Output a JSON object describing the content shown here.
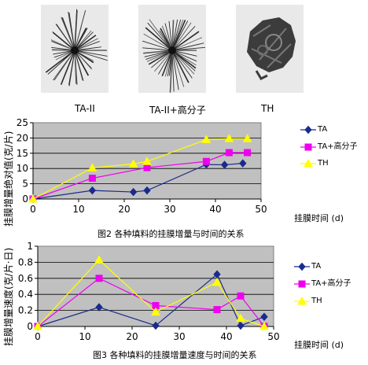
{
  "photos": [
    {
      "label": "TA-II"
    },
    {
      "label": "TA-II+高分子"
    },
    {
      "label": "TH"
    }
  ],
  "chart_data": [
    {
      "type": "line",
      "caption": "图2  各种填料的挂膜增量与时间的关系",
      "xlabel": "挂膜时间 (d)",
      "ylabel": "挂膜增量绝对值(克/片)",
      "xlim": [
        0,
        50
      ],
      "ylim": [
        0,
        25
      ],
      "xticks": [
        "0",
        "10",
        "20",
        "30",
        "40",
        "50"
      ],
      "yticks": [
        "0",
        "5",
        "10",
        "15",
        "20",
        "25"
      ],
      "grid": true,
      "legend": "right",
      "series": [
        {
          "name": "TA",
          "color": "#1b2b8c",
          "marker": "diamond",
          "x": [
            0,
            13,
            22,
            25,
            38,
            42,
            46
          ],
          "y": [
            0,
            2.8,
            2.3,
            2.8,
            11.3,
            11.2,
            11.7
          ]
        },
        {
          "name": "TA+高分子",
          "color": "#ee00ee",
          "marker": "square",
          "x": [
            0,
            13,
            25,
            38,
            43,
            47
          ],
          "y": [
            0,
            6.8,
            10.3,
            12.3,
            15.2,
            15.2
          ]
        },
        {
          "name": "TH",
          "color": "#ffff00",
          "marker": "triangle",
          "x": [
            0,
            13,
            22,
            25,
            38,
            43,
            47
          ],
          "y": [
            0,
            10.2,
            11.5,
            12.3,
            19.5,
            19.8,
            19.8
          ]
        }
      ]
    },
    {
      "type": "line",
      "caption": "图3  各种填料的挂膜增量速度与时间的关系",
      "xlabel": "挂膜时间 (d)",
      "ylabel": "挂膜增量速度(克/片·日)",
      "xlim": [
        0,
        50
      ],
      "ylim": [
        0,
        1
      ],
      "xticks": [
        "0",
        "10",
        "20",
        "30",
        "40",
        "50"
      ],
      "yticks": [
        "0",
        "0.2",
        "0.4",
        "0.6",
        "0.8",
        "1"
      ],
      "grid": true,
      "legend": "right",
      "series": [
        {
          "name": "TA",
          "color": "#1b2b8c",
          "marker": "diamond",
          "x": [
            0,
            13,
            25,
            38,
            43,
            48
          ],
          "y": [
            0,
            0.24,
            0.01,
            0.65,
            0.01,
            0.12
          ]
        },
        {
          "name": "TA+高分子",
          "color": "#ee00ee",
          "marker": "square",
          "x": [
            0,
            13,
            25,
            38,
            43,
            48
          ],
          "y": [
            0,
            0.6,
            0.26,
            0.21,
            0.38,
            0.0
          ]
        },
        {
          "name": "TH",
          "color": "#ffff00",
          "marker": "triangle",
          "x": [
            0,
            13,
            25,
            38,
            43,
            48
          ],
          "y": [
            0,
            0.83,
            0.18,
            0.55,
            0.1,
            0.0
          ]
        }
      ]
    }
  ]
}
